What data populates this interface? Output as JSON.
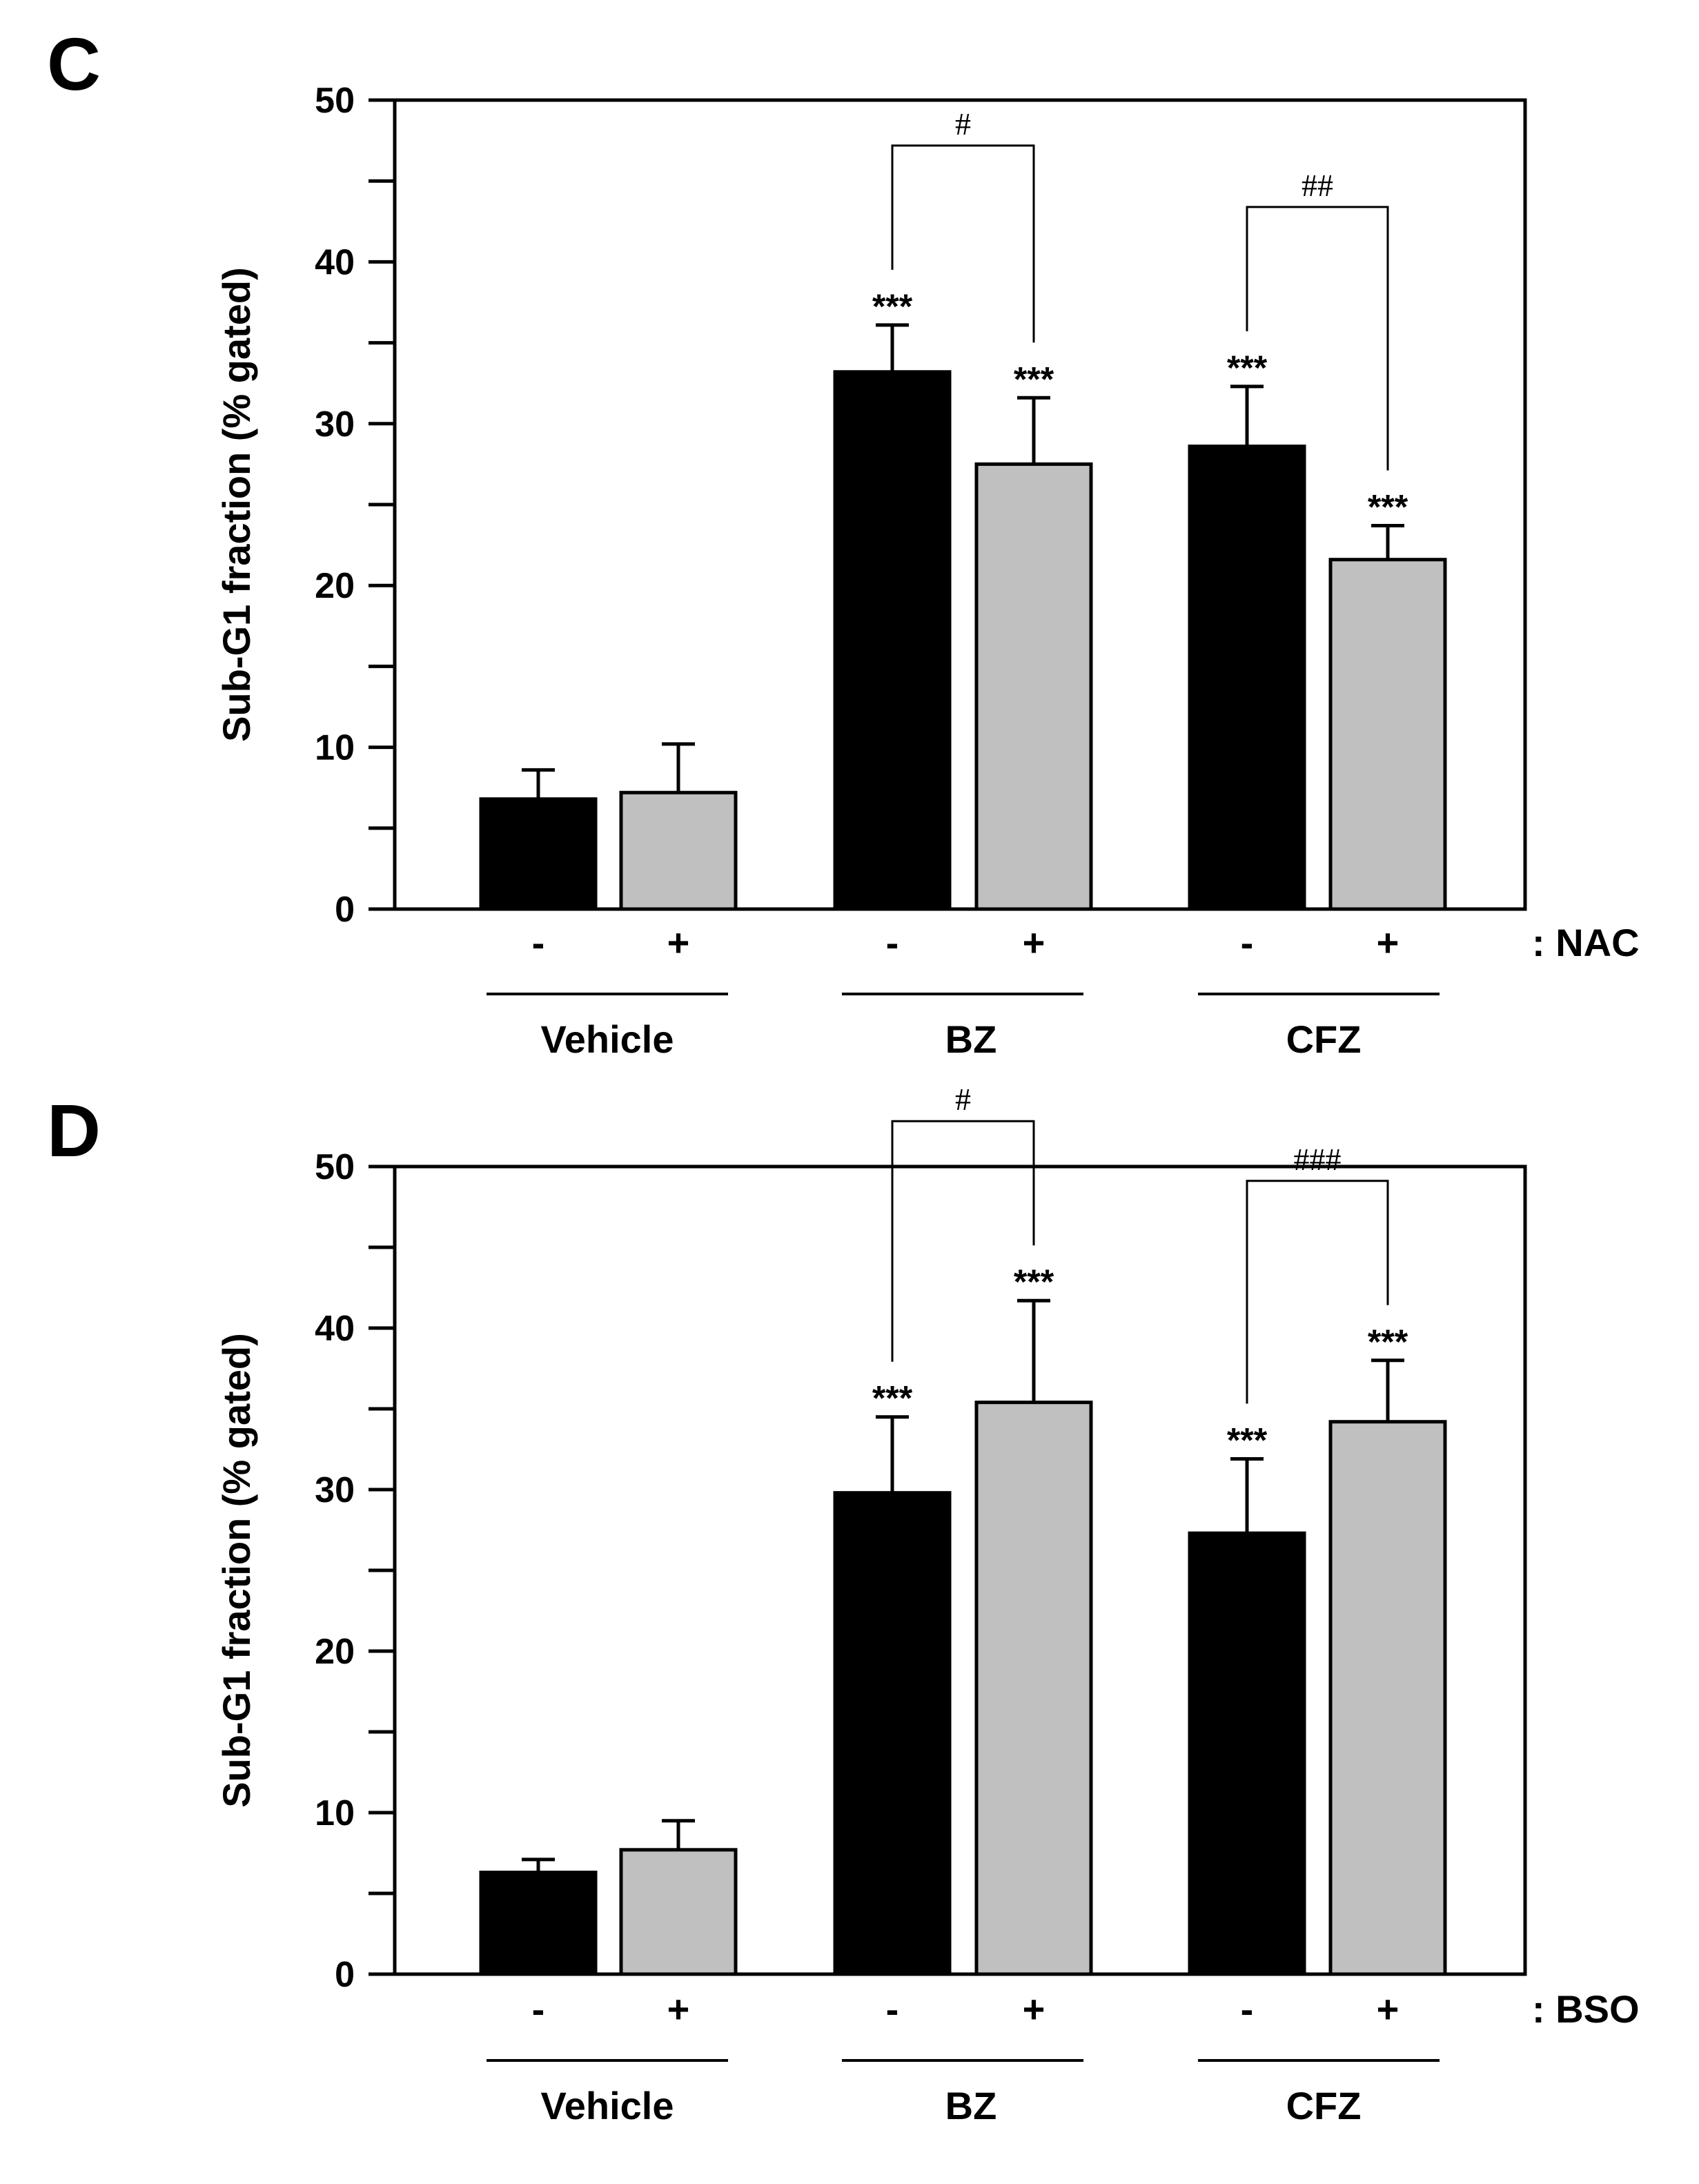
{
  "chart_data": [
    {
      "panel": "C",
      "type": "bar",
      "ylabel": "Sub-G1 fraction (% gated)",
      "ylim": [
        0,
        50
      ],
      "yticks": [
        0,
        10,
        20,
        30,
        40,
        50
      ],
      "treatment_label": ": NAC",
      "groups": [
        "Vehicle",
        "BZ",
        "CFZ"
      ],
      "conditions": [
        "-",
        "+"
      ],
      "bar_colors": [
        "#000000",
        "#c0c0c0"
      ],
      "values": [
        [
          6.8,
          7.2
        ],
        [
          33.2,
          27.5
        ],
        [
          28.6,
          21.6
        ]
      ],
      "errors": [
        [
          1.8,
          3.0
        ],
        [
          2.9,
          4.1
        ],
        [
          3.7,
          2.1
        ]
      ],
      "stars": [
        [
          "",
          ""
        ],
        [
          "***",
          "***"
        ],
        [
          "***",
          "***"
        ]
      ],
      "comparisons": [
        {
          "group": 1,
          "label": "#"
        },
        {
          "group": 2,
          "label": "##"
        }
      ]
    },
    {
      "panel": "D",
      "type": "bar",
      "ylabel": "Sub-G1 fraction (% gated)",
      "ylim": [
        0,
        50
      ],
      "yticks": [
        0,
        10,
        20,
        30,
        40,
        50
      ],
      "treatment_label": ": BSO",
      "groups": [
        "Vehicle",
        "BZ",
        "CFZ"
      ],
      "conditions": [
        "-",
        "+"
      ],
      "bar_colors": [
        "#000000",
        "#c0c0c0"
      ],
      "values": [
        [
          6.3,
          7.7
        ],
        [
          29.8,
          35.4
        ],
        [
          27.3,
          34.2
        ]
      ],
      "errors": [
        [
          0.8,
          1.8
        ],
        [
          4.7,
          6.3
        ],
        [
          4.6,
          3.8
        ]
      ],
      "stars": [
        [
          "",
          ""
        ],
        [
          "***",
          "***"
        ],
        [
          "***",
          "***"
        ]
      ],
      "comparisons": [
        {
          "group": 1,
          "label": "#"
        },
        {
          "group": 2,
          "label": "###"
        }
      ]
    }
  ]
}
